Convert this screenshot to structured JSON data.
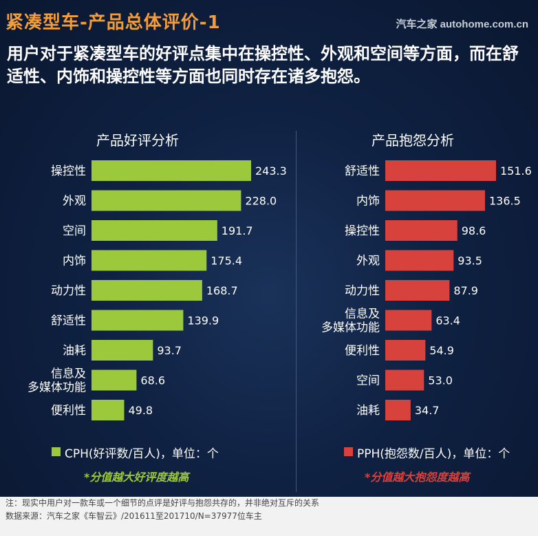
{
  "header": {
    "title": "紧凑型车-产品总体评价-1",
    "watermark": "汽车之家 autohome.com.cn"
  },
  "headline": "用户对于紧凑型车的好评点集中在操控性、外观和空间等方面，而在舒适性、内饰和操控性等方面也同时存在诸多抱怨。",
  "colors": {
    "good": "#9cc93b",
    "bad": "#d8423c",
    "title": "#f39c3a"
  },
  "legends": {
    "good": "CPH(好评数/百人)，单位：个",
    "bad": "PPH(抱怨数/百人)，单位：个"
  },
  "notes": {
    "good": "*分值越大好评度越高",
    "bad": "*分值越大抱怨度越高"
  },
  "footer": {
    "note": "注：现实中用户对一款车或一个细节的点评是好评与抱怨共存的，并非绝对互斥的关系",
    "source": "数据来源：汽车之家《车智云》/201611至201710/N=37977位车主"
  },
  "chart_data": [
    {
      "type": "bar",
      "orientation": "horizontal",
      "title": "产品好评分析",
      "categories": [
        "操控性",
        "外观",
        "空间",
        "内饰",
        "动力性",
        "舒适性",
        "油耗",
        "信息及\n多媒体功能",
        "便利性"
      ],
      "values": [
        243.3,
        228.0,
        191.7,
        175.4,
        168.7,
        139.9,
        93.7,
        68.6,
        49.8
      ],
      "labels": [
        "243.3",
        "228.0",
        "191.7",
        "175.4",
        "168.7",
        "139.9",
        "93.7",
        "68.6",
        "49.8"
      ],
      "xlim": [
        0,
        243.3
      ],
      "series": [
        {
          "name": "CPH(好评数/百人)，单位：个",
          "color": "#9cc93b"
        }
      ]
    },
    {
      "type": "bar",
      "orientation": "horizontal",
      "title": "产品抱怨分析",
      "categories": [
        "舒适性",
        "内饰",
        "操控性",
        "外观",
        "动力性",
        "信息及\n多媒体功能",
        "便利性",
        "空间",
        "油耗"
      ],
      "values": [
        151.6,
        136.5,
        98.6,
        93.5,
        87.9,
        63.4,
        54.9,
        53.0,
        34.7
      ],
      "labels": [
        "151.6",
        "136.5",
        "98.6",
        "93.5",
        "87.9",
        "63.4",
        "54.9",
        "53.0",
        "34.7"
      ],
      "xlim": [
        0,
        151.6
      ],
      "series": [
        {
          "name": "PPH(抱怨数/百人)，单位：个",
          "color": "#d8423c"
        }
      ]
    }
  ]
}
